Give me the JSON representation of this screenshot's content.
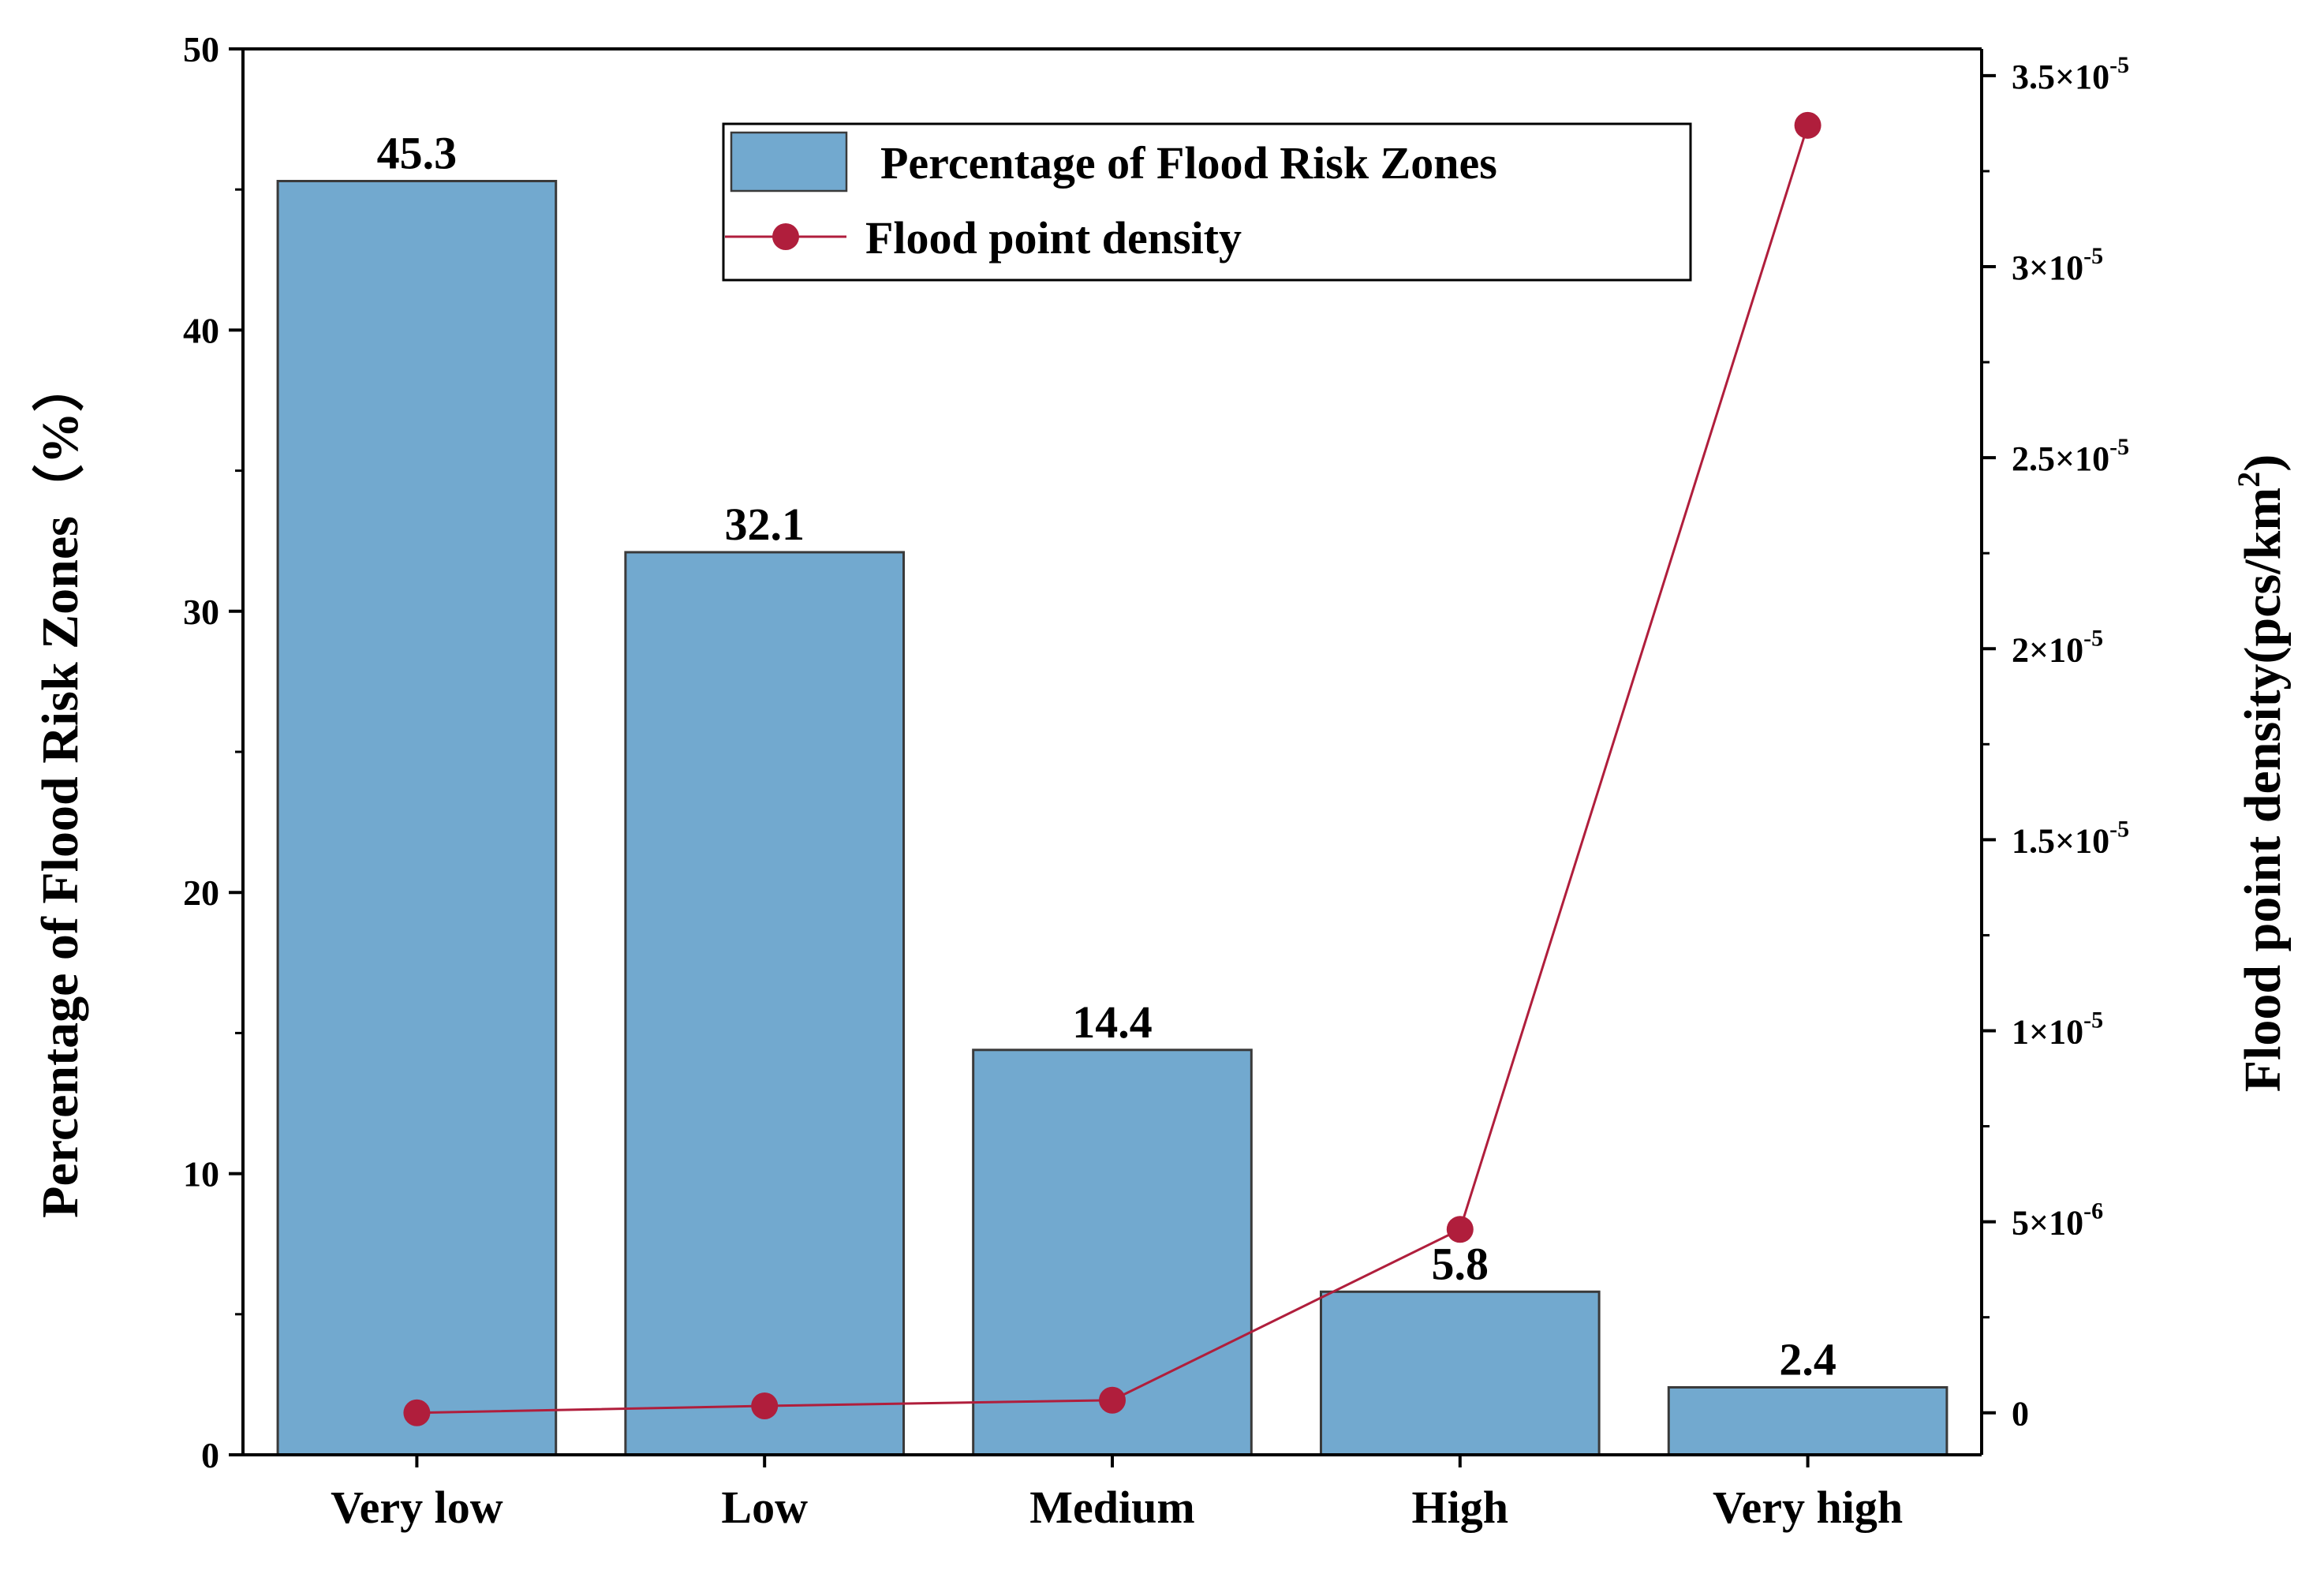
{
  "chart_data": {
    "type": "bar",
    "categories": [
      "Very low",
      "Low",
      "Medium",
      "High",
      "Very high"
    ],
    "series": [
      {
        "name": "Percentage of Flood Risk Zones",
        "kind": "bar",
        "axis": "left",
        "values": [
          45.3,
          32.1,
          14.4,
          5.8,
          2.4
        ],
        "data_labels": [
          "45.3",
          "32.1",
          "14.4",
          "5.8",
          "2.4"
        ]
      },
      {
        "name": "Flood point density",
        "kind": "line",
        "axis": "right",
        "values": [
          0.0,
          1.8e-07,
          3.3e-07,
          4.8e-06,
          3.37e-05
        ]
      }
    ],
    "ylabel": "Percentage of Flood Risk Zones（%）",
    "y2label_main": "Flood point density(pcs/km",
    "y2label_sup": "2",
    "y2label_end": ")",
    "ylim": [
      0,
      50
    ],
    "y2lim": [
      -1.1e-06,
      3.57e-05
    ],
    "yticks": [
      {
        "v": 0,
        "label": "0"
      },
      {
        "v": 10,
        "label": "10"
      },
      {
        "v": 20,
        "label": "20"
      },
      {
        "v": 30,
        "label": "30"
      },
      {
        "v": 40,
        "label": "40"
      },
      {
        "v": 50,
        "label": "50"
      }
    ],
    "y2ticks": [
      {
        "v": 0,
        "mant": "0",
        "exp": ""
      },
      {
        "v": 5e-06,
        "mant": "5×10",
        "exp": "-6"
      },
      {
        "v": 1e-05,
        "mant": "1×10",
        "exp": "-5"
      },
      {
        "v": 1.5e-05,
        "mant": "1.5×10",
        "exp": "-5"
      },
      {
        "v": 2e-05,
        "mant": "2×10",
        "exp": "-5"
      },
      {
        "v": 2.5e-05,
        "mant": "2.5×10",
        "exp": "-5"
      },
      {
        "v": 3e-05,
        "mant": "3×10",
        "exp": "-5"
      },
      {
        "v": 3.5e-05,
        "mant": "3.5×10",
        "exp": "-5"
      }
    ],
    "legend_position": "top-right",
    "colors": {
      "bar": "#72a9cf",
      "bar_edge": "#3a3a3a",
      "line": "#b01e3c",
      "marker": "#b01e3c"
    }
  }
}
